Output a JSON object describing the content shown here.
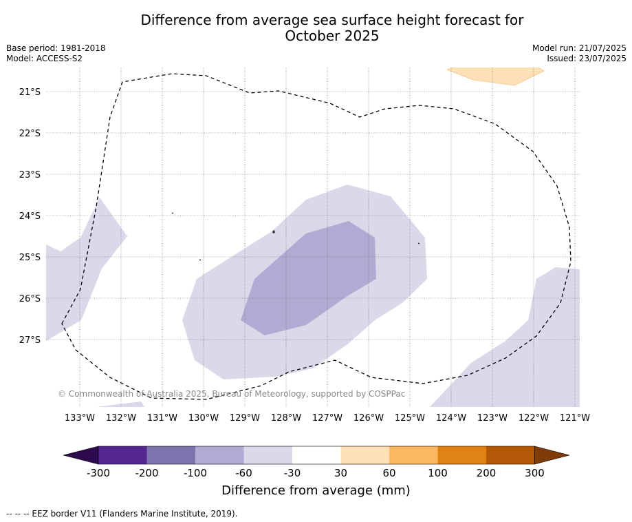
{
  "header": {
    "title_line1": "Difference from average sea surface height forecast for",
    "title_line2": "October 2025",
    "base_period": "Base period: 1981-2018",
    "model": "Model: ACCESS-S2",
    "model_run": "Model run: 21/07/2025",
    "issued": "Issued: 23/07/2025"
  },
  "map": {
    "lat_labels": [
      "21°S",
      "22°S",
      "23°S",
      "24°S",
      "25°S",
      "26°S",
      "27°S"
    ],
    "lon_labels": [
      "133°W",
      "132°W",
      "131°W",
      "130°W",
      "129°W",
      "128°W",
      "127°W",
      "126°W",
      "125°W",
      "124°W",
      "123°W",
      "122°W",
      "121°W"
    ],
    "copyright": "© Commonwealth of Australia 2025, Bureau of Meteorology, supported by COSPPac",
    "grid": true
  },
  "colorbar": {
    "tick_labels": [
      "-300",
      "-200",
      "-100",
      "-60",
      "-30",
      "30",
      "60",
      "100",
      "200",
      "300"
    ],
    "title": "Difference from average (mm)",
    "colors": [
      "#2d0a4e",
      "#54278f",
      "#7f73ae",
      "#b1aad3",
      "#d9d9ea",
      "#ffffff",
      "#fee0b6",
      "#fdb863",
      "#e08214",
      "#b35806",
      "#7f3b08"
    ]
  },
  "footer": {
    "legend_note": "--  --  -- EEZ border V11 (Flanders Marine Institute, 2019)."
  }
}
